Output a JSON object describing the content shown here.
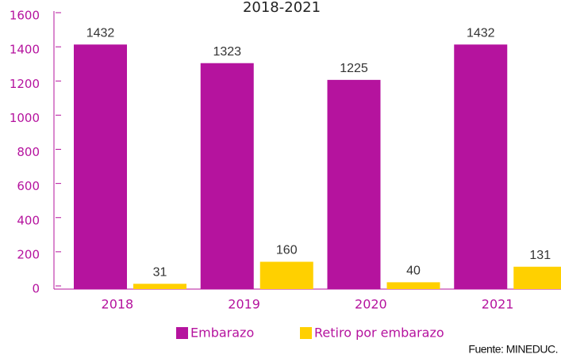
{
  "chart_data": {
    "type": "bar",
    "title": "2018-2021",
    "categories": [
      "2018",
      "2019",
      "2020",
      "2021"
    ],
    "series": [
      {
        "name": "Embarazo",
        "color": "#b5139e",
        "values": [
          1432,
          1323,
          1225,
          1432
        ]
      },
      {
        "name": "Retiro por embarazo",
        "color": "#ffd000",
        "values": [
          31,
          160,
          40,
          131
        ]
      }
    ],
    "ylim": [
      0,
      1600
    ],
    "yticks": [
      0,
      200,
      400,
      600,
      800,
      1000,
      1200,
      1400,
      1600
    ],
    "source": "Fuente: MINEDUC."
  }
}
